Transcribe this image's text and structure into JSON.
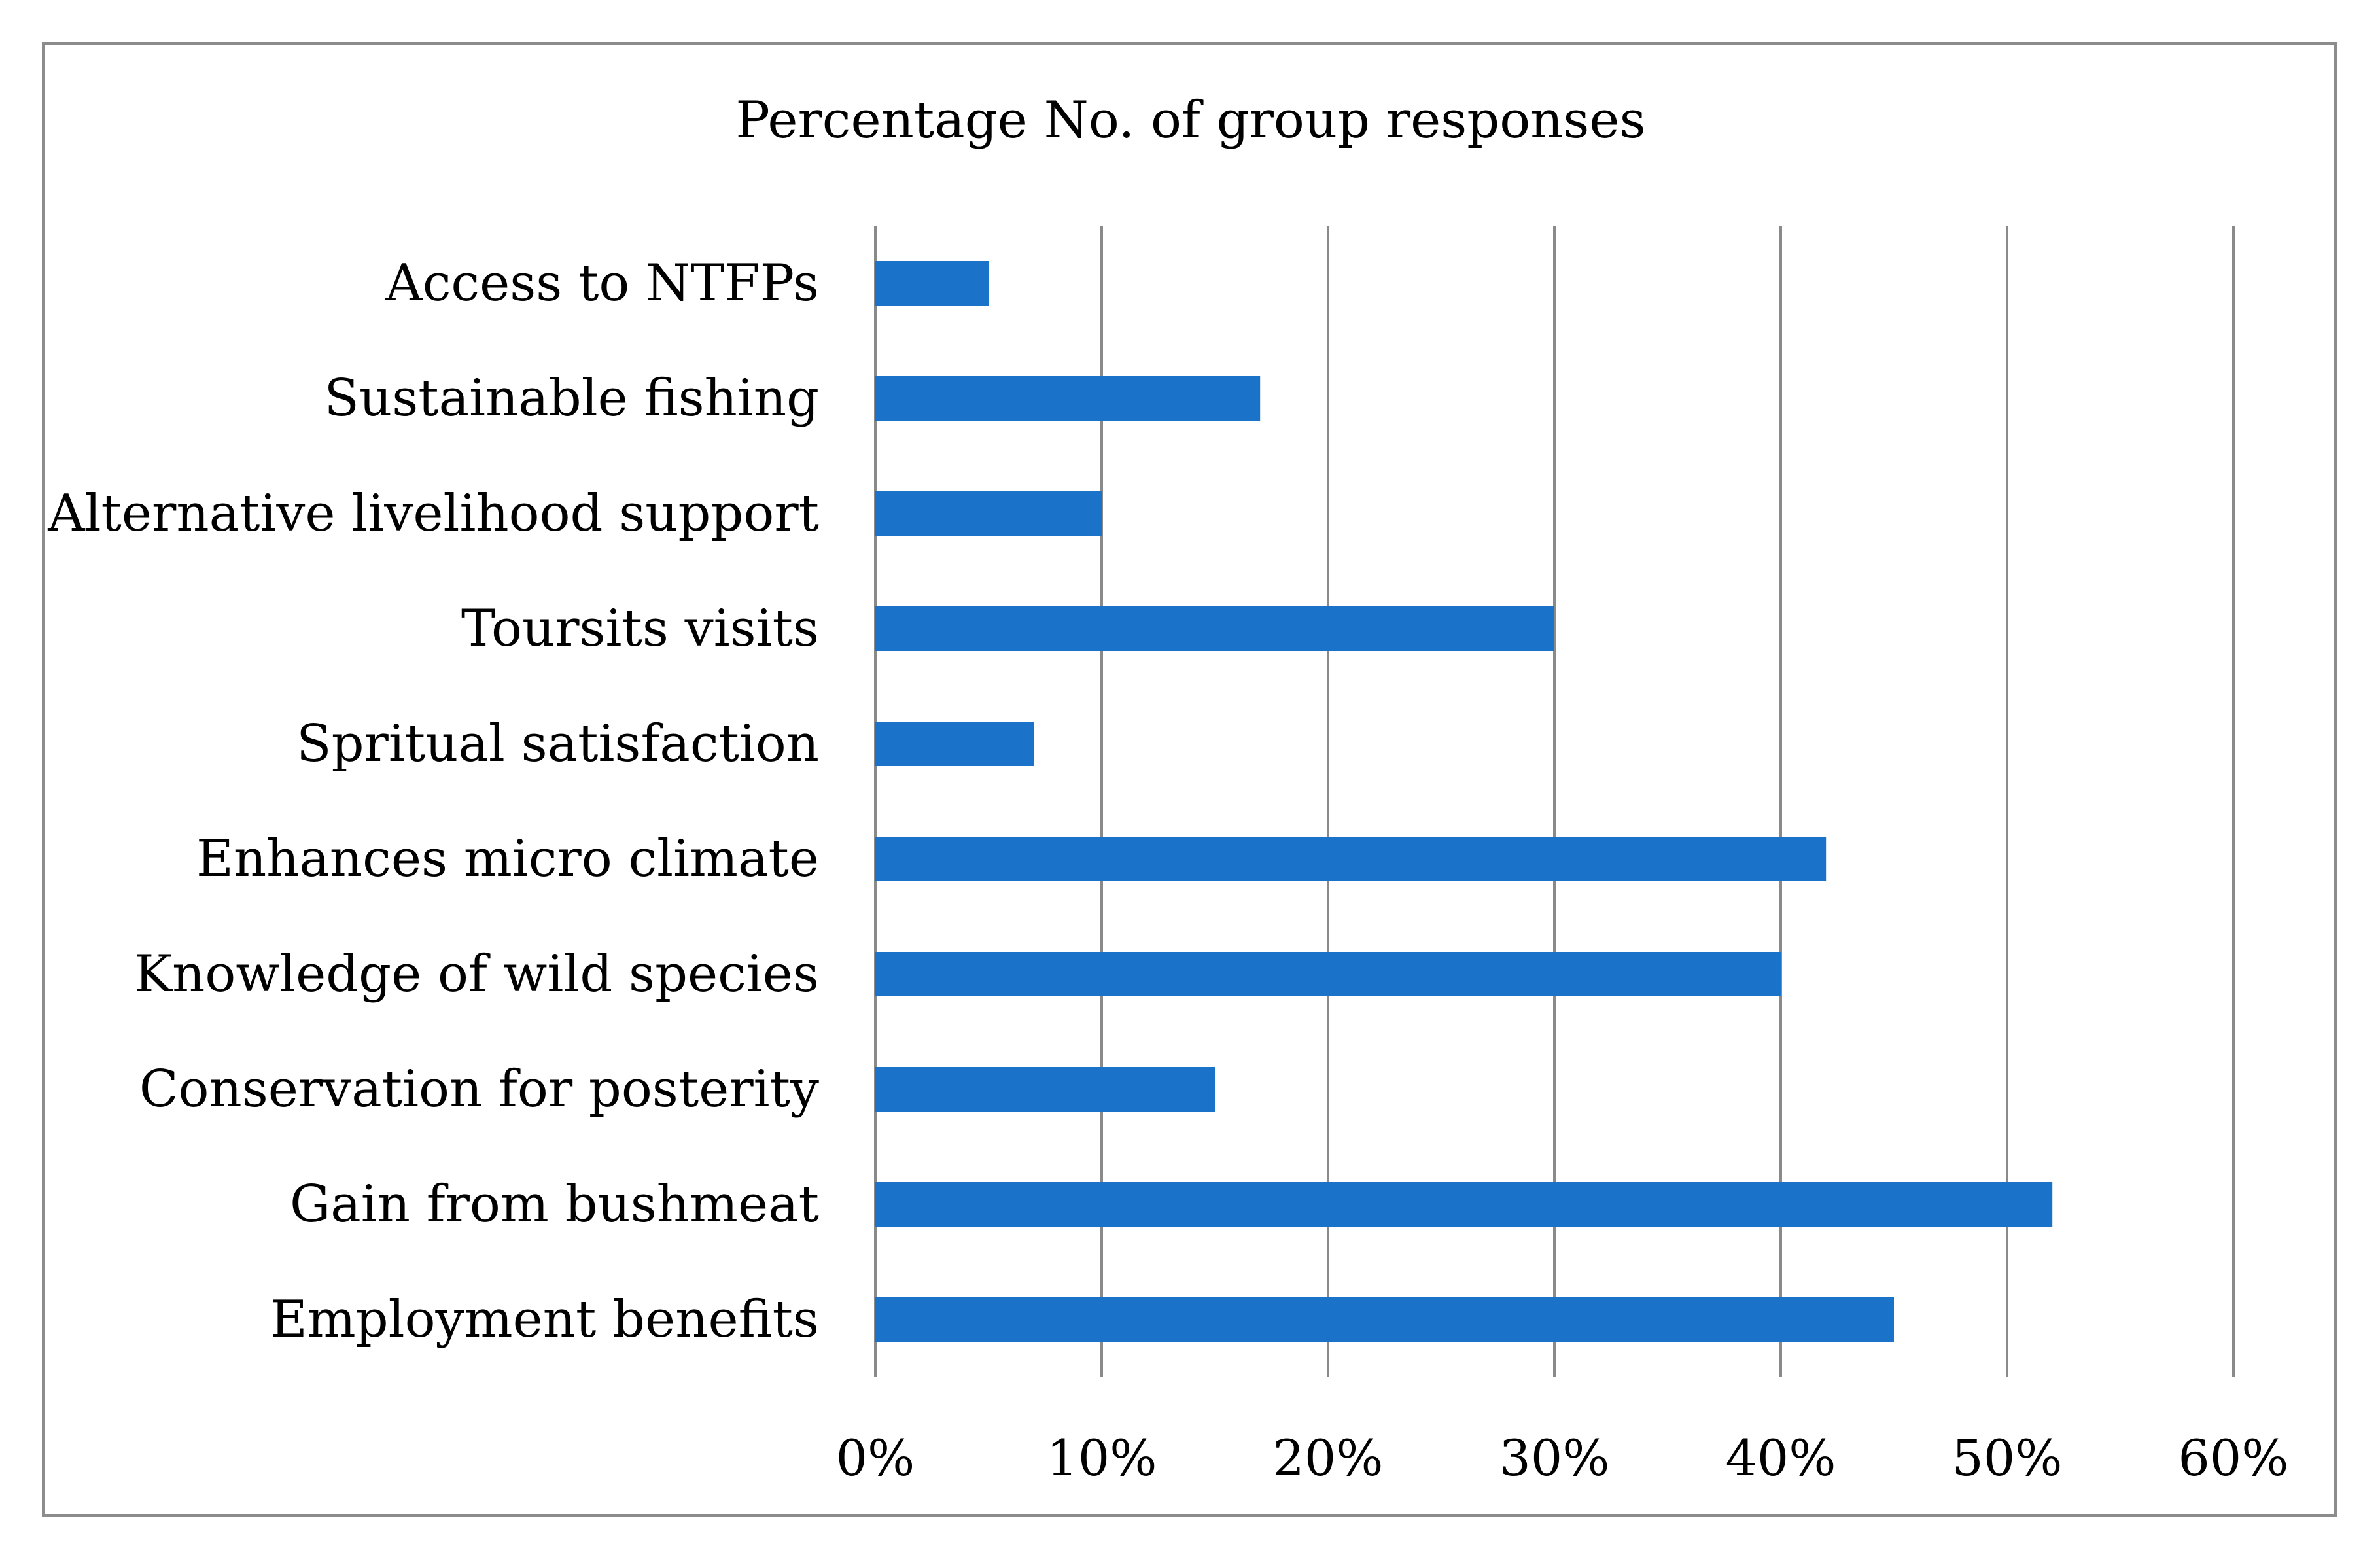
{
  "chart_data": {
    "type": "bar",
    "orientation": "horizontal",
    "title": "Percentage No. of group responses",
    "xlabel": "",
    "ylabel": "",
    "categories": [
      "Access to NTFPs",
      "Sustainable fishing",
      "Alternative livelihood support",
      "Toursits visits",
      "Spritual satisfaction",
      "Enhances micro climate",
      "Knowledge of wild species",
      "Conservation for posterity",
      "Gain from bushmeat",
      "Employment benefits"
    ],
    "values": [
      5,
      17,
      10,
      30,
      7,
      42,
      40,
      15,
      52,
      45
    ],
    "value_unit": "%",
    "xlim": [
      0,
      60
    ],
    "xticks": [
      0,
      10,
      20,
      30,
      40,
      50,
      60
    ],
    "xtick_labels": [
      "0%",
      "10%",
      "20%",
      "30%",
      "40%",
      "50%",
      "60%"
    ],
    "grid": "vertical",
    "legend": "none",
    "bar_color": "#1a73c9"
  }
}
